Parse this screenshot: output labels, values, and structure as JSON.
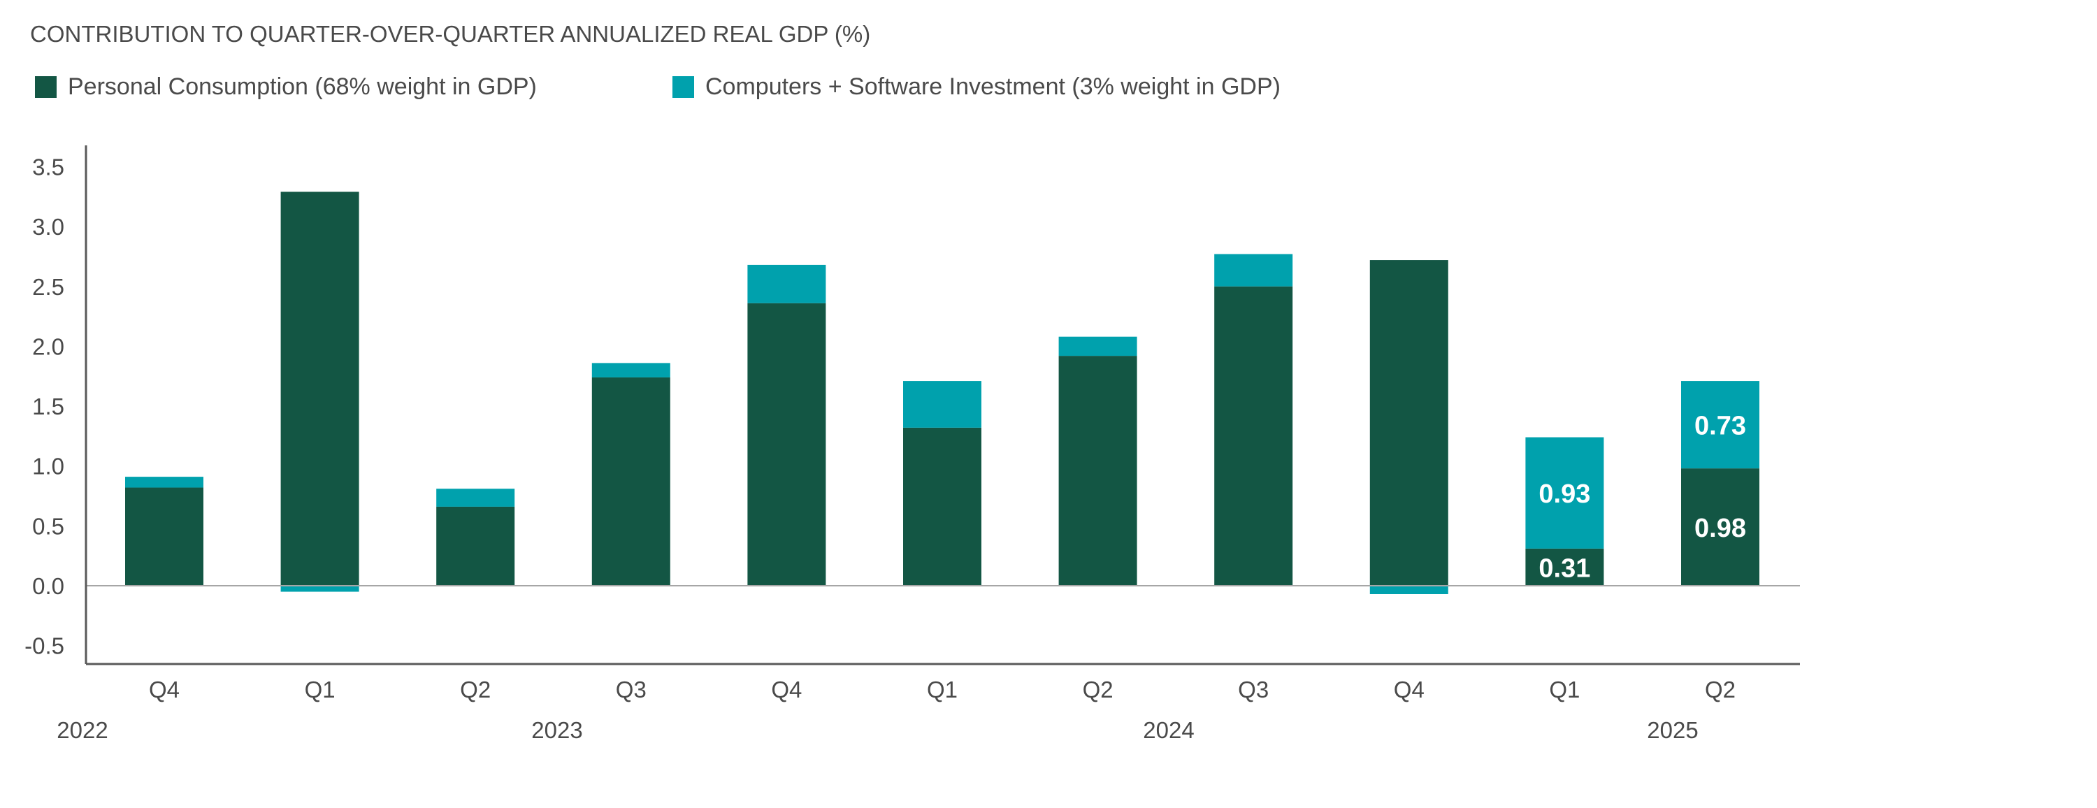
{
  "chart_data": {
    "type": "bar",
    "stacked": true,
    "title": "CONTRIBUTION TO QUARTER-OVER-QUARTER ANNUALIZED REAL GDP (%)",
    "categories": [
      "Q4",
      "Q1",
      "Q2",
      "Q3",
      "Q4",
      "Q1",
      "Q2",
      "Q3",
      "Q4",
      "Q1",
      "Q2"
    ],
    "year_labels": [
      "2022",
      "2023",
      "2024",
      "2025"
    ],
    "series": [
      {
        "name": "Personal Consumption (68% weight in GDP)",
        "color": "#135644",
        "values": [
          0.82,
          3.29,
          0.66,
          1.74,
          2.36,
          1.32,
          1.92,
          2.5,
          2.72,
          0.31,
          0.98
        ]
      },
      {
        "name": "Computers + Software Investment (3% weight in GDP)",
        "color": "#00a1ad",
        "values": [
          0.09,
          -0.05,
          0.15,
          0.12,
          0.32,
          0.39,
          0.16,
          0.27,
          -0.07,
          0.93,
          0.73
        ]
      }
    ],
    "data_labels": {
      "Personal Consumption (68% weight in GDP)": {
        "9": "0.31",
        "10": "0.98"
      },
      "Computers + Software Investment (3% weight in GDP)": {
        "9": "0.93",
        "10": "0.73"
      }
    },
    "yticks": [
      "-0.5",
      "0.0",
      "0.5",
      "1.0",
      "1.5",
      "2.0",
      "2.5",
      "3.0",
      "3.5"
    ],
    "ylim": [
      -0.65,
      3.65
    ],
    "xlabel": "",
    "ylabel": "",
    "grid": false,
    "legend_position": "top-left"
  }
}
